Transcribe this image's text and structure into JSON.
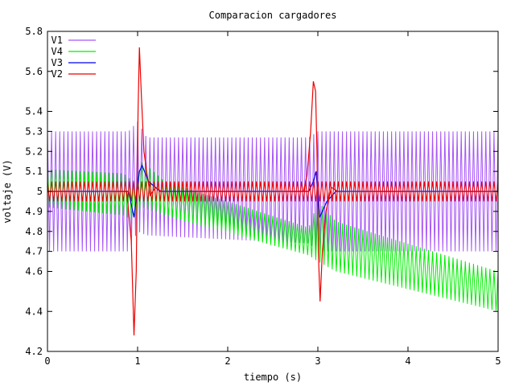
{
  "chart_data": {
    "type": "line",
    "title": "Comparacion cargadores",
    "xlabel": "tiempo (s)",
    "ylabel": "voltaje (V)",
    "xlim": [
      0,
      5
    ],
    "ylim": [
      4.2,
      5.8
    ],
    "x_ticks": [
      0,
      1,
      2,
      3,
      4,
      5
    ],
    "y_ticks": [
      4.2,
      4.4,
      4.6,
      4.7,
      4.8,
      4.9,
      5,
      5.1,
      5.2,
      5.3,
      5.4,
      5.6,
      5.8
    ],
    "grid": false,
    "legend_position": "top-left",
    "series": [
      {
        "name": "V1",
        "color": "#a855f7",
        "ripple_hz": 22,
        "envelope": [
          {
            "x": 0.0,
            "low": 4.7,
            "high": 5.3
          },
          {
            "x": 0.9,
            "low": 4.7,
            "high": 5.3
          },
          {
            "x": 1.0,
            "low": 4.8,
            "high": 5.35
          },
          {
            "x": 1.1,
            "low": 4.78,
            "high": 5.27
          },
          {
            "x": 2.9,
            "low": 4.74,
            "high": 5.27
          },
          {
            "x": 3.0,
            "low": 4.7,
            "high": 5.3
          },
          {
            "x": 5.0,
            "low": 4.7,
            "high": 5.3
          }
        ]
      },
      {
        "name": "V4",
        "color": "#00ee00",
        "ripple_hz": 22,
        "envelope": [
          {
            "x": 0.0,
            "low": 4.92,
            "high": 5.11
          },
          {
            "x": 0.85,
            "low": 4.88,
            "high": 5.09
          },
          {
            "x": 0.95,
            "low": 4.85,
            "high": 5.05
          },
          {
            "x": 1.05,
            "low": 4.92,
            "high": 5.15
          },
          {
            "x": 1.3,
            "low": 4.88,
            "high": 5.05
          },
          {
            "x": 2.9,
            "low": 4.68,
            "high": 4.82
          },
          {
            "x": 3.0,
            "low": 4.65,
            "high": 4.95
          },
          {
            "x": 3.2,
            "low": 4.6,
            "high": 4.85
          },
          {
            "x": 5.0,
            "low": 4.4,
            "high": 4.6
          }
        ]
      },
      {
        "name": "V3",
        "color": "#0000ee",
        "points": [
          {
            "x": 0.0,
            "y": 5.0
          },
          {
            "x": 0.9,
            "y": 5.0
          },
          {
            "x": 0.96,
            "y": 4.87
          },
          {
            "x": 1.02,
            "y": 5.1
          },
          {
            "x": 1.05,
            "y": 5.13
          },
          {
            "x": 1.12,
            "y": 5.05
          },
          {
            "x": 1.25,
            "y": 5.0
          },
          {
            "x": 2.9,
            "y": 5.0
          },
          {
            "x": 2.95,
            "y": 5.05
          },
          {
            "x": 2.98,
            "y": 5.1
          },
          {
            "x": 3.02,
            "y": 4.87
          },
          {
            "x": 3.1,
            "y": 4.95
          },
          {
            "x": 3.2,
            "y": 5.0
          },
          {
            "x": 5.0,
            "y": 5.0
          }
        ]
      },
      {
        "name": "V2",
        "color": "#ee0000",
        "ripple_hz": 22,
        "envelope": [
          {
            "x": 0.0,
            "low": 4.95,
            "high": 5.05
          },
          {
            "x": 0.88,
            "low": 4.95,
            "high": 5.05
          },
          {
            "x": 5.0,
            "low": 4.95,
            "high": 5.05
          }
        ],
        "spikes": [
          [
            {
              "x": 0.88,
              "y": 5.0
            },
            {
              "x": 0.93,
              "y": 4.75
            },
            {
              "x": 0.96,
              "y": 4.28
            },
            {
              "x": 0.985,
              "y": 4.6
            },
            {
              "x": 1.005,
              "y": 5.4
            },
            {
              "x": 1.02,
              "y": 5.72
            },
            {
              "x": 1.04,
              "y": 5.5
            },
            {
              "x": 1.07,
              "y": 5.2
            },
            {
              "x": 1.1,
              "y": 5.1
            },
            {
              "x": 1.14,
              "y": 4.98
            },
            {
              "x": 1.2,
              "y": 5.02
            },
            {
              "x": 1.26,
              "y": 5.0
            }
          ],
          [
            {
              "x": 2.84,
              "y": 5.0
            },
            {
              "x": 2.88,
              "y": 5.08
            },
            {
              "x": 2.92,
              "y": 5.3
            },
            {
              "x": 2.95,
              "y": 5.55
            },
            {
              "x": 2.975,
              "y": 5.5
            },
            {
              "x": 2.99,
              "y": 5.2
            },
            {
              "x": 3.005,
              "y": 4.7
            },
            {
              "x": 3.025,
              "y": 4.45
            },
            {
              "x": 3.05,
              "y": 4.7
            },
            {
              "x": 3.09,
              "y": 4.9
            },
            {
              "x": 3.15,
              "y": 5.02
            },
            {
              "x": 3.22,
              "y": 5.0
            }
          ]
        ]
      }
    ]
  }
}
